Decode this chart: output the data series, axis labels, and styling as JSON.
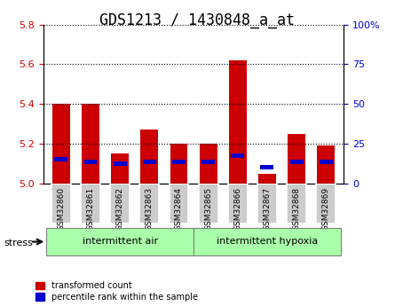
{
  "title": "GDS1213 / 1430848_a_at",
  "samples": [
    "GSM32860",
    "GSM32861",
    "GSM32862",
    "GSM32863",
    "GSM32864",
    "GSM32865",
    "GSM32866",
    "GSM32867",
    "GSM32868",
    "GSM32869"
  ],
  "red_values": [
    5.4,
    5.4,
    5.15,
    5.27,
    5.2,
    5.2,
    5.62,
    5.05,
    5.25,
    5.19
  ],
  "blue_values": [
    5.11,
    5.1,
    5.09,
    5.1,
    5.1,
    5.1,
    5.13,
    5.07,
    5.1,
    5.1
  ],
  "baseline": 5.0,
  "ylim_left": [
    5.0,
    5.8
  ],
  "ylim_right": [
    0,
    100
  ],
  "yticks_left": [
    5.0,
    5.2,
    5.4,
    5.6,
    5.8
  ],
  "yticks_right": [
    0,
    25,
    50,
    75,
    100
  ],
  "group1_label": "intermittent air",
  "group2_label": "intermittent hypoxia",
  "group1_indices": [
    0,
    1,
    2,
    3,
    4
  ],
  "group2_indices": [
    5,
    6,
    7,
    8,
    9
  ],
  "stress_label": "stress",
  "legend_red": "transformed count",
  "legend_blue": "percentile rank within the sample",
  "bar_width": 0.6,
  "red_color": "#cc0000",
  "blue_color": "#0000cc",
  "group_bg_color": "#aaffaa",
  "tick_label_bg": "#cccccc",
  "grid_color": "black",
  "title_fontsize": 12,
  "tick_fontsize": 8,
  "label_fontsize": 8
}
